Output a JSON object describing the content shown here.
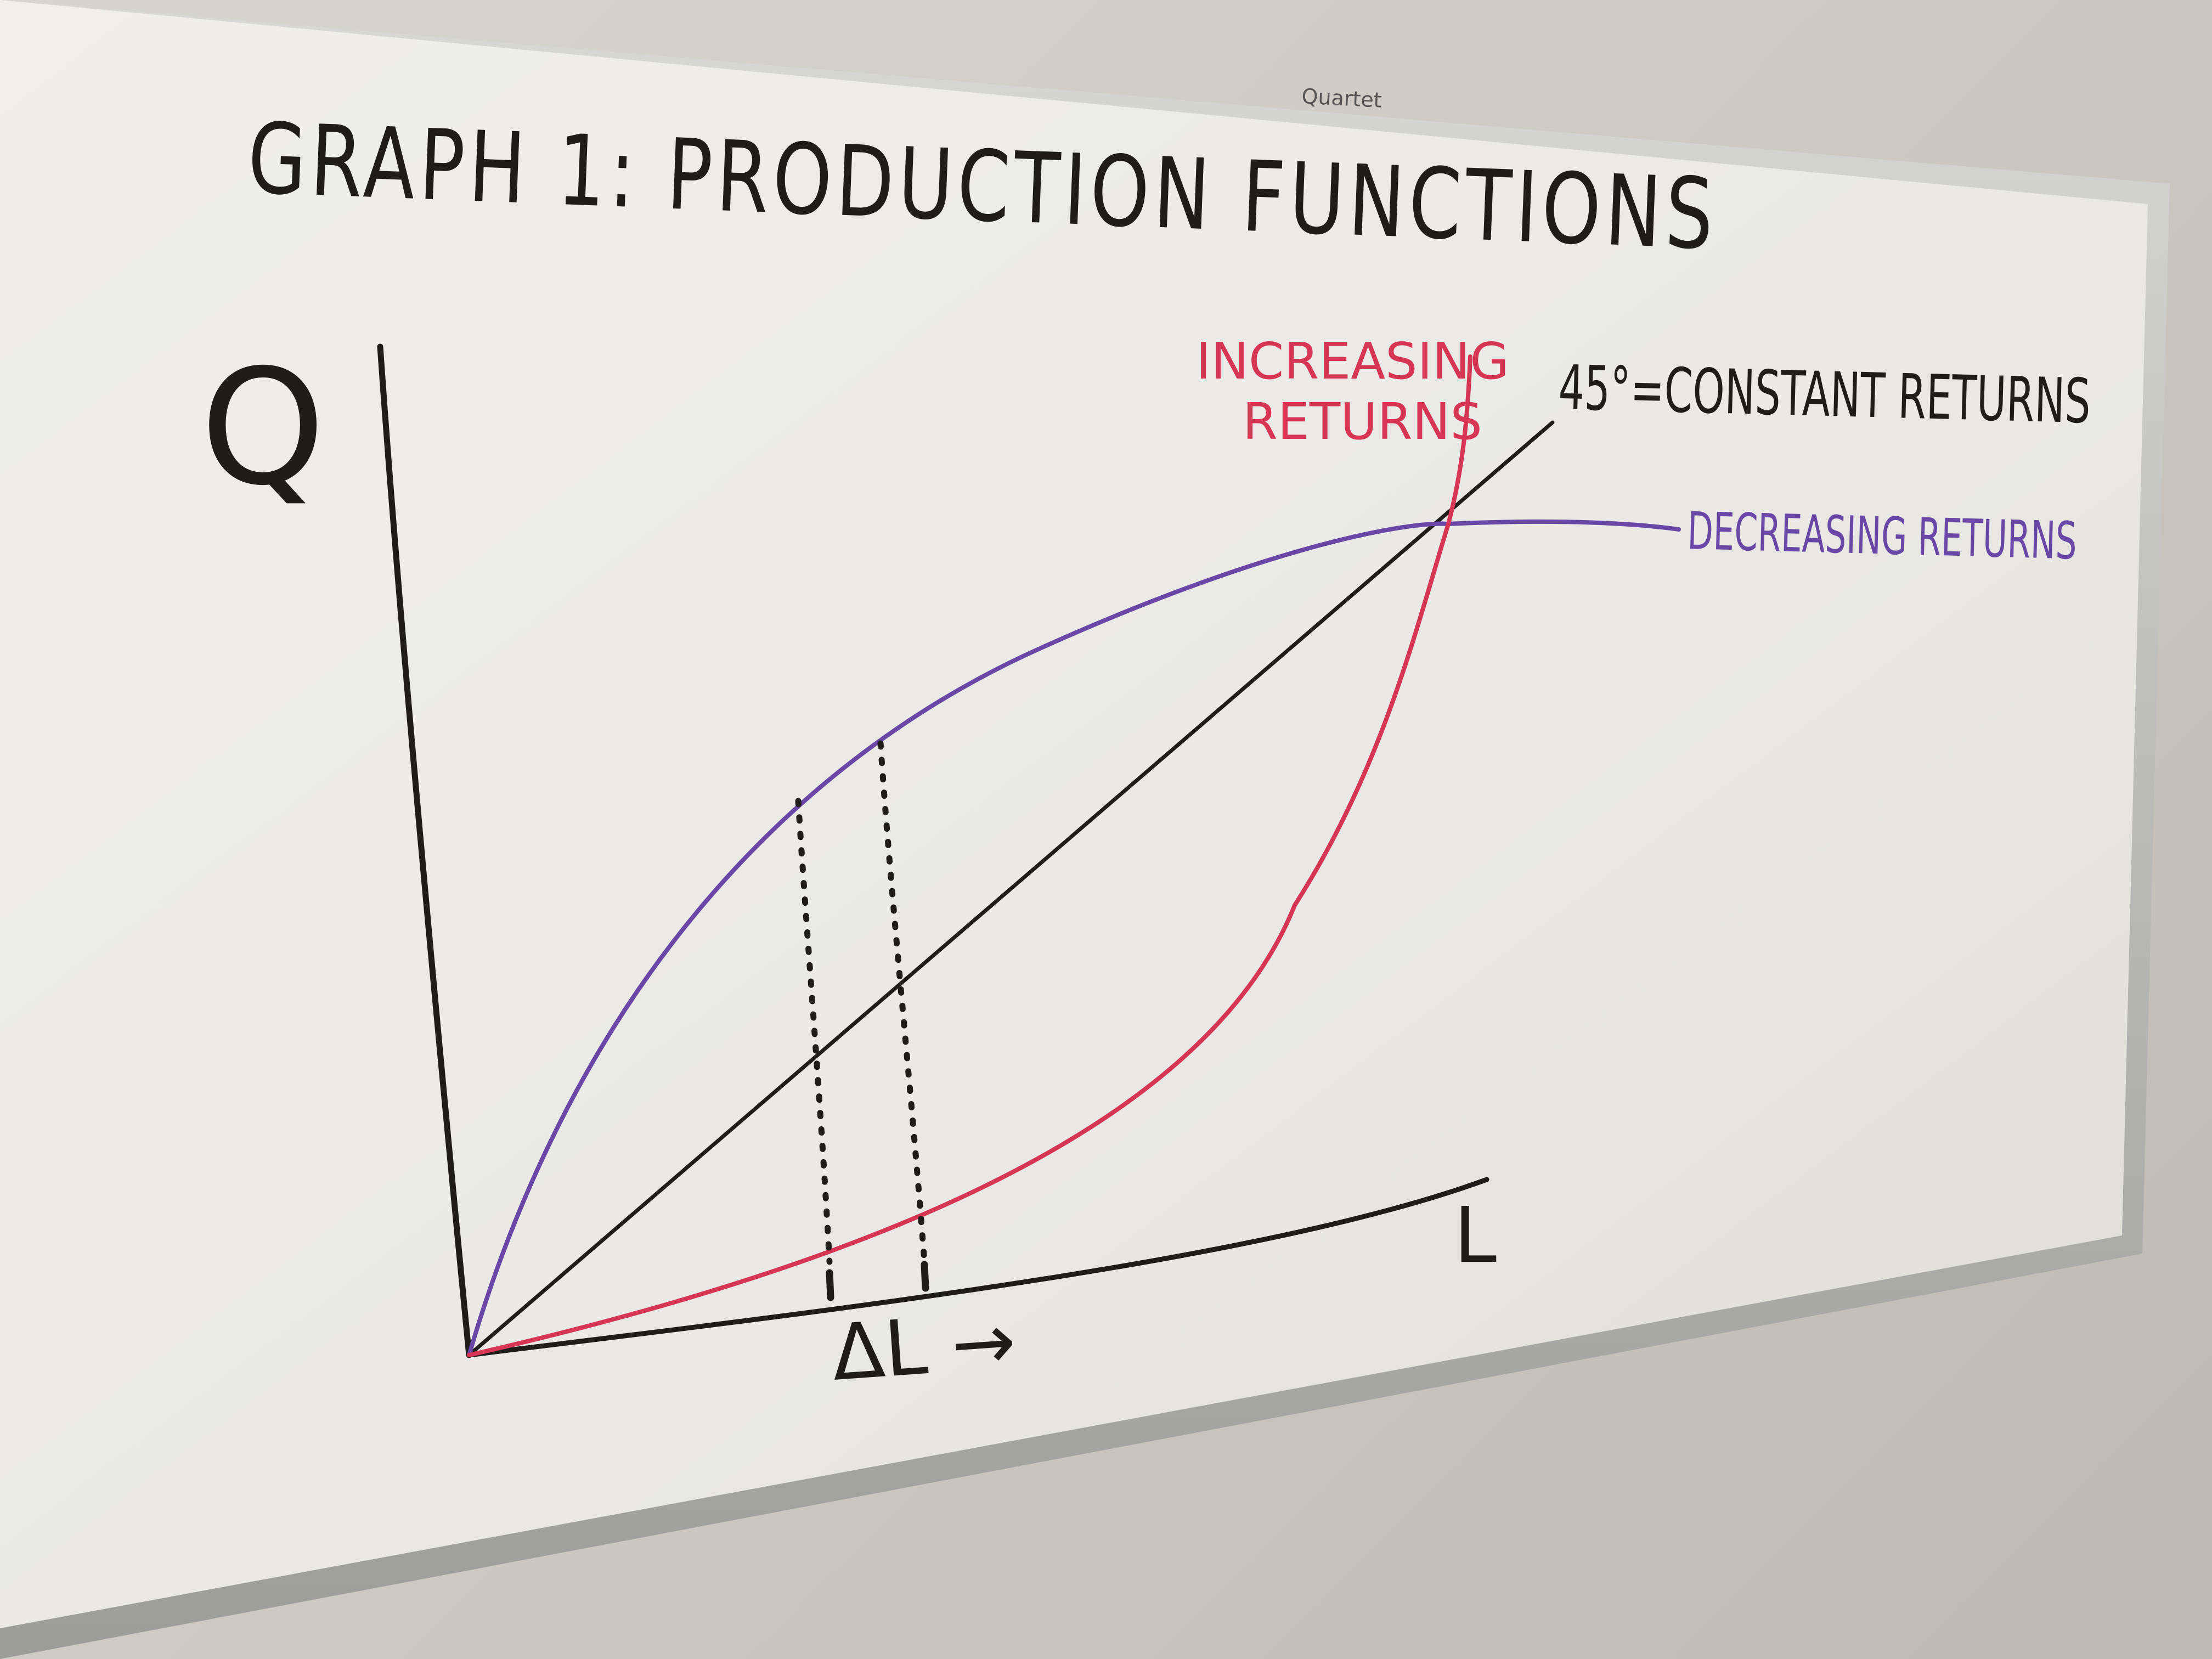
{
  "brand_label": "Quartet",
  "title": "GRAPH 1: PRODUCTION FUNCTIONS",
  "y_axis_label": "Q",
  "x_axis_label": "L",
  "increasing_label": "INCREASING\nRETURNS",
  "increasing_label_line1": "INCREASING",
  "increasing_label_line2": "RETURNS",
  "constant_label": "45°=CONSTANT RETURNS",
  "decreasing_label": "DECREASING RETURNS",
  "delta_label": "ΔL →",
  "colors": {
    "ink_black": "#1f1d1c",
    "ink_red": "#d63553",
    "ink_purple": "#6a46a6",
    "board_white": "#ecebe7",
    "frame_silver": "#b8b8b6",
    "wall": "#cfcdc8"
  },
  "chart_data": {
    "type": "line",
    "xlabel": "L",
    "ylabel": "Q",
    "series": [
      {
        "name": "45°=CONSTANT RETURNS",
        "shape": "linear",
        "color": "#1f1d1c"
      },
      {
        "name": "INCREASING RETURNS",
        "shape": "convex",
        "color": "#d63553"
      },
      {
        "name": "DECREASING RETURNS",
        "shape": "concave",
        "color": "#6a46a6"
      }
    ],
    "annotations": [
      "ΔL →"
    ]
  }
}
